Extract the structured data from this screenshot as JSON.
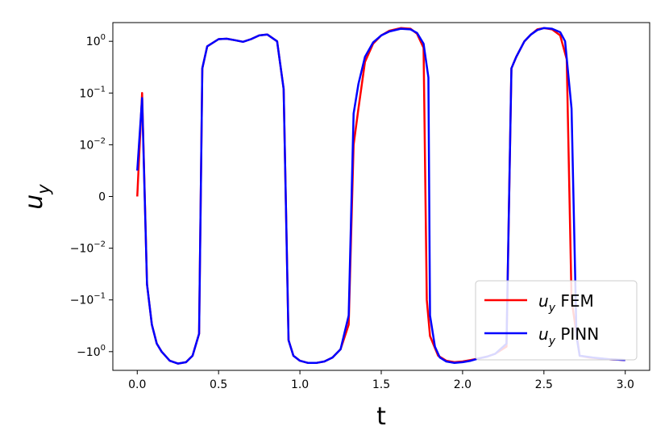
{
  "chart_data": {
    "type": "line",
    "xlabel": "t",
    "ylabel_main": "u",
    "ylabel_sub": "y",
    "yscale": "symlog",
    "linthresh": 0.01,
    "xlim": [
      -0.15,
      3.15
    ],
    "ylim": [
      -2.3,
      2.3
    ],
    "grid": false,
    "legend_position": "lower right",
    "x_ticks": [
      {
        "value": 0.0,
        "label": "0.0"
      },
      {
        "value": 0.5,
        "label": "0.5"
      },
      {
        "value": 1.0,
        "label": "1.0"
      },
      {
        "value": 1.5,
        "label": "1.5"
      },
      {
        "value": 2.0,
        "label": "2.0"
      },
      {
        "value": 2.5,
        "label": "2.5"
      },
      {
        "value": 3.0,
        "label": "3.0"
      }
    ],
    "y_ticks": [
      {
        "value": 1,
        "base": "10",
        "exp": "0"
      },
      {
        "value": 0.1,
        "base": "10",
        "exp": "−1"
      },
      {
        "value": 0.01,
        "base": "10",
        "exp": "−2"
      },
      {
        "value": 0,
        "base": "0",
        "exp": ""
      },
      {
        "value": -0.01,
        "base": "−10",
        "exp": "−2"
      },
      {
        "value": -0.1,
        "base": "−10",
        "exp": "−1"
      },
      {
        "value": -1,
        "base": "−10",
        "exp": "0"
      }
    ],
    "series": [
      {
        "name_main": "u",
        "name_sub": "y",
        "name_suffix": " FEM",
        "color": "#ff0000",
        "points": [
          [
            0.0,
            0.0
          ],
          [
            0.03,
            0.1
          ],
          [
            0.06,
            -0.05
          ],
          [
            0.09,
            -0.3
          ],
          [
            0.12,
            -0.7
          ],
          [
            0.15,
            -1.0
          ],
          [
            0.2,
            -1.5
          ],
          [
            0.25,
            -1.7
          ],
          [
            0.3,
            -1.6
          ],
          [
            0.34,
            -1.2
          ],
          [
            0.38,
            -0.45
          ],
          [
            0.4,
            0.3
          ],
          [
            0.43,
            0.8
          ],
          [
            0.5,
            1.1
          ],
          [
            0.55,
            1.12
          ],
          [
            0.6,
            1.05
          ],
          [
            0.65,
            0.98
          ],
          [
            0.7,
            1.1
          ],
          [
            0.75,
            1.3
          ],
          [
            0.8,
            1.35
          ],
          [
            0.86,
            1.0
          ],
          [
            0.9,
            0.12
          ],
          [
            0.93,
            -0.6
          ],
          [
            0.96,
            -1.2
          ],
          [
            1.0,
            -1.5
          ],
          [
            1.05,
            -1.65
          ],
          [
            1.1,
            -1.65
          ],
          [
            1.15,
            -1.55
          ],
          [
            1.2,
            -1.3
          ],
          [
            1.25,
            -0.9
          ],
          [
            1.3,
            -0.3
          ],
          [
            1.33,
            0.01
          ],
          [
            1.36,
            0.05
          ],
          [
            1.4,
            0.4
          ],
          [
            1.45,
            0.9
          ],
          [
            1.5,
            1.3
          ],
          [
            1.55,
            1.6
          ],
          [
            1.62,
            1.8
          ],
          [
            1.68,
            1.75
          ],
          [
            1.72,
            1.4
          ],
          [
            1.76,
            0.75
          ],
          [
            1.78,
            -0.1
          ],
          [
            1.8,
            -0.5
          ],
          [
            1.85,
            -1.2
          ],
          [
            1.9,
            -1.5
          ],
          [
            1.95,
            -1.6
          ],
          [
            2.0,
            -1.55
          ],
          [
            2.05,
            -1.45
          ],
          [
            2.1,
            -1.35
          ],
          [
            2.15,
            -1.25
          ],
          [
            2.2,
            -1.1
          ],
          [
            2.27,
            -0.8
          ],
          [
            2.3,
            0.3
          ],
          [
            2.33,
            0.5
          ],
          [
            2.38,
            1.0
          ],
          [
            2.42,
            1.35
          ],
          [
            2.46,
            1.7
          ],
          [
            2.5,
            1.8
          ],
          [
            2.55,
            1.7
          ],
          [
            2.6,
            1.3
          ],
          [
            2.64,
            0.45
          ],
          [
            2.67,
            -0.1
          ],
          [
            2.72,
            -1.2
          ],
          [
            2.78,
            -1.3
          ],
          [
            2.9,
            -1.4
          ],
          [
            3.0,
            -1.45
          ]
        ]
      },
      {
        "name_main": "u",
        "name_sub": "y",
        "name_suffix": " PINN",
        "color": "#0000ff",
        "points": [
          [
            0.0,
            0.005
          ],
          [
            0.03,
            0.08
          ],
          [
            0.06,
            -0.05
          ],
          [
            0.09,
            -0.3
          ],
          [
            0.12,
            -0.7
          ],
          [
            0.15,
            -1.0
          ],
          [
            0.2,
            -1.5
          ],
          [
            0.25,
            -1.7
          ],
          [
            0.3,
            -1.6
          ],
          [
            0.34,
            -1.2
          ],
          [
            0.38,
            -0.45
          ],
          [
            0.4,
            0.3
          ],
          [
            0.43,
            0.8
          ],
          [
            0.5,
            1.1
          ],
          [
            0.55,
            1.12
          ],
          [
            0.6,
            1.05
          ],
          [
            0.65,
            0.98
          ],
          [
            0.7,
            1.1
          ],
          [
            0.75,
            1.3
          ],
          [
            0.8,
            1.35
          ],
          [
            0.86,
            1.0
          ],
          [
            0.9,
            0.12
          ],
          [
            0.93,
            -0.6
          ],
          [
            0.96,
            -1.2
          ],
          [
            1.0,
            -1.5
          ],
          [
            1.05,
            -1.65
          ],
          [
            1.1,
            -1.65
          ],
          [
            1.15,
            -1.55
          ],
          [
            1.2,
            -1.3
          ],
          [
            1.25,
            -0.9
          ],
          [
            1.3,
            -0.2
          ],
          [
            1.33,
            0.04
          ],
          [
            1.36,
            0.15
          ],
          [
            1.4,
            0.5
          ],
          [
            1.45,
            0.95
          ],
          [
            1.5,
            1.3
          ],
          [
            1.55,
            1.55
          ],
          [
            1.62,
            1.75
          ],
          [
            1.68,
            1.7
          ],
          [
            1.72,
            1.45
          ],
          [
            1.76,
            0.9
          ],
          [
            1.79,
            0.2
          ],
          [
            1.8,
            -0.2
          ],
          [
            1.83,
            -0.8
          ],
          [
            1.86,
            -1.3
          ],
          [
            1.9,
            -1.55
          ],
          [
            1.95,
            -1.65
          ],
          [
            2.0,
            -1.6
          ],
          [
            2.05,
            -1.5
          ],
          [
            2.1,
            -1.35
          ],
          [
            2.15,
            -1.25
          ],
          [
            2.2,
            -1.1
          ],
          [
            2.27,
            -0.7
          ],
          [
            2.3,
            0.3
          ],
          [
            2.33,
            0.5
          ],
          [
            2.38,
            1.0
          ],
          [
            2.42,
            1.35
          ],
          [
            2.46,
            1.65
          ],
          [
            2.5,
            1.8
          ],
          [
            2.55,
            1.75
          ],
          [
            2.6,
            1.5
          ],
          [
            2.63,
            1.0
          ],
          [
            2.67,
            0.05
          ],
          [
            2.7,
            -0.5
          ],
          [
            2.72,
            -1.2
          ],
          [
            2.8,
            -1.3
          ],
          [
            2.9,
            -1.4
          ],
          [
            3.0,
            -1.45
          ]
        ]
      }
    ]
  }
}
